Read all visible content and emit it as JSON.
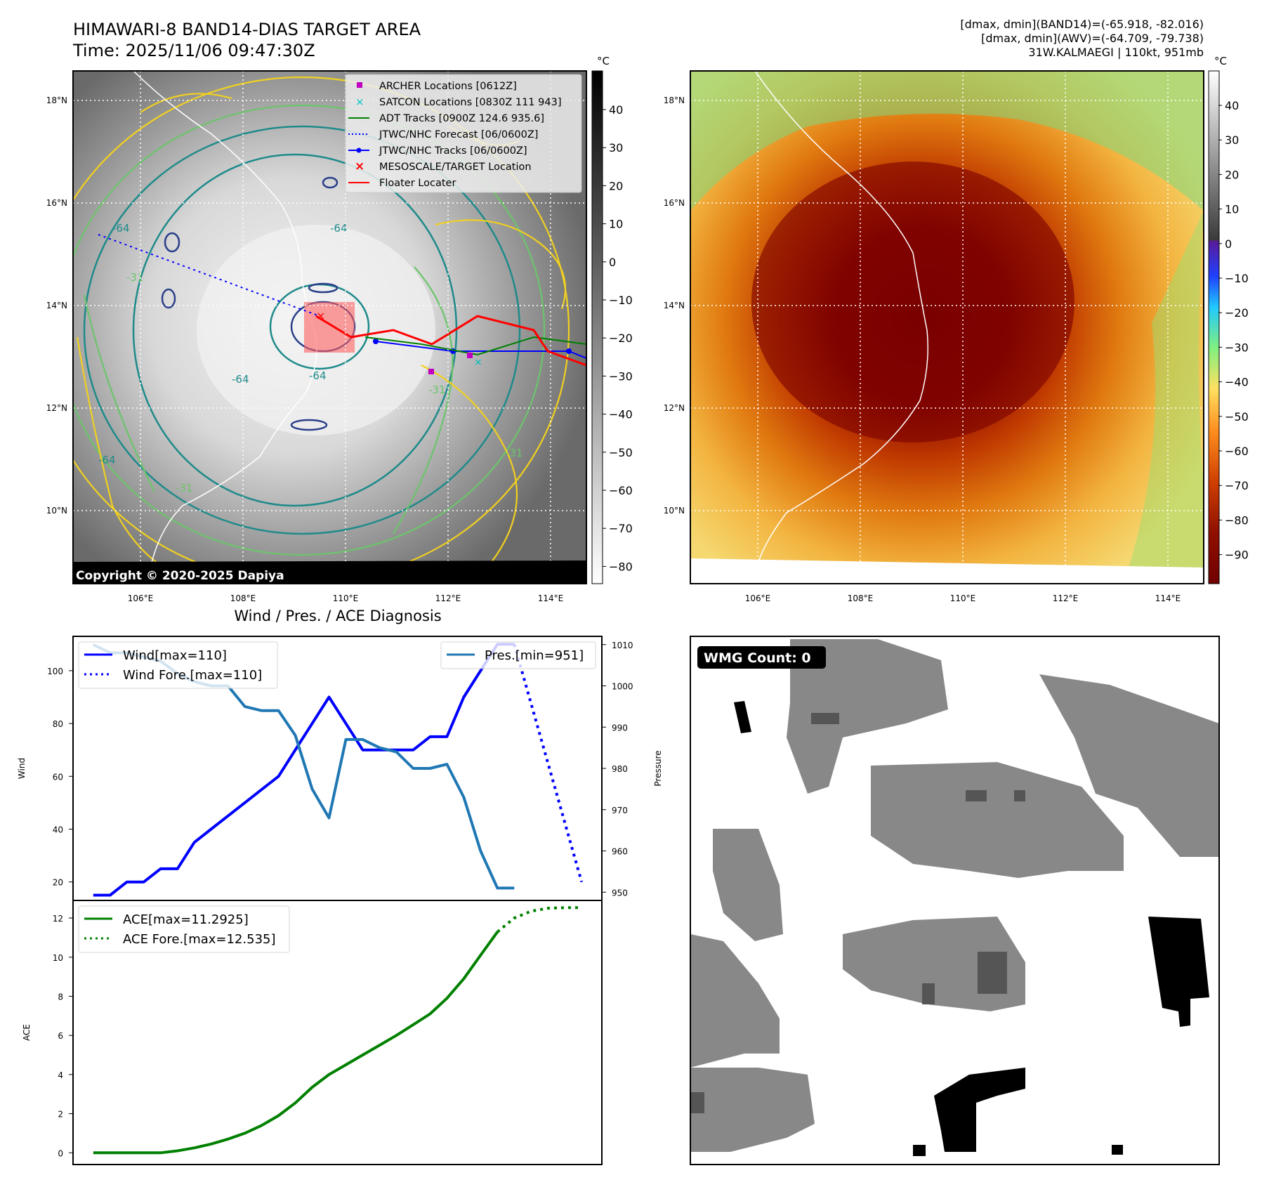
{
  "header": {
    "title_line1": "HIMAWARI-8 BAND14-DIAS TARGET AREA",
    "title_line2": "Time: 2025/11/06 09:47:30Z",
    "info_line1": "[dmax, dmin](BAND14)=(-65.918, -82.016)",
    "info_line2": "[dmax, dmin](AWV)=(-64.709, -79.738)",
    "info_line3": "31W.KALMAEGI | 110kt, 951mb"
  },
  "map": {
    "lon_labels": [
      "106°E",
      "108°E",
      "110°E",
      "112°E",
      "114°E"
    ],
    "lat_labels": [
      "18°N",
      "16°N",
      "14°N",
      "12°N",
      "10°N"
    ],
    "contour_labels": [
      "-64",
      "-64",
      "-64",
      "-64",
      "-64",
      "-31",
      "-31",
      "-31",
      "-31"
    ],
    "copyright": "Copyright © 2020-2025 Dapiya",
    "legend": [
      {
        "label": "ARCHER Locations [0612Z]",
        "color": "#c000c0",
        "marker": "square"
      },
      {
        "label": "SATCON Locations [0830Z 111 943]",
        "color": "#00bfbf",
        "marker": "x"
      },
      {
        "label": "ADT Tracks [0900Z 124.6 935.6]",
        "color": "#008000",
        "marker": "line"
      },
      {
        "label": "JTWC/NHC Forecast [06/0600Z]",
        "color": "#0000ff",
        "marker": "dotted"
      },
      {
        "label": "JTWC/NHC Tracks [06/0600Z]",
        "color": "#0000ff",
        "marker": "line-dot"
      },
      {
        "label": "MESOSCALE/TARGET Location",
        "color": "#ff0000",
        "marker": "x"
      },
      {
        "label": "Floater Locater",
        "color": "#ff0000",
        "marker": "line"
      }
    ]
  },
  "colorbar1": {
    "unit": "°C",
    "ticks": [
      "40",
      "30",
      "20",
      "10",
      "0",
      "−10",
      "−20",
      "−30",
      "−40",
      "−50",
      "−60",
      "−70",
      "−80"
    ]
  },
  "colorbar2": {
    "unit": "°C",
    "ticks": [
      "40",
      "30",
      "20",
      "10",
      "0",
      "−10",
      "−20",
      "−30",
      "−40",
      "−50",
      "−60",
      "−70",
      "−80",
      "−90"
    ]
  },
  "wmg": {
    "label": "WMG Count: 0"
  },
  "chart_data": [
    {
      "type": "line",
      "title": "Wind / Pres. / ACE Diagnosis",
      "ylabel": "Wind",
      "ylabel_right": "Pressure",
      "ylim": [
        13,
        113
      ],
      "ylim_right": [
        948,
        1012
      ],
      "yticks": [
        20,
        40,
        60,
        80,
        100
      ],
      "yticks_right": [
        950,
        960,
        970,
        980,
        990,
        1000,
        1010
      ],
      "series": [
        {
          "name": "Wind[max=110]",
          "axis": "left",
          "color": "#0000ff",
          "style": "solid",
          "values": [
            15,
            15,
            20,
            20,
            25,
            25,
            35,
            40,
            45,
            50,
            55,
            60,
            70,
            80,
            90,
            80,
            70,
            70,
            70,
            70,
            75,
            75,
            90,
            100,
            110,
            110
          ]
        },
        {
          "name": "Wind Fore.[max=110]",
          "axis": "left",
          "color": "#0000ff",
          "style": "dotted",
          "x": [
            25,
            29
          ],
          "values": [
            110,
            20
          ]
        },
        {
          "name": "Pres.[min=951]",
          "axis": "right",
          "color": "#1f77b4",
          "style": "solid",
          "values": [
            1010,
            1008,
            1008,
            1007,
            1006,
            1003,
            1001,
            1000,
            1000,
            995,
            994,
            994,
            988,
            975,
            968,
            987,
            987,
            985,
            984,
            980,
            980,
            981,
            973,
            960,
            951,
            951
          ]
        }
      ]
    },
    {
      "type": "line",
      "ylabel": "ACE",
      "ylim": [
        -0.6,
        12.9
      ],
      "yticks": [
        0,
        2,
        4,
        6,
        8,
        10,
        12
      ],
      "series": [
        {
          "name": "ACE[max=11.2925]",
          "color": "#008000",
          "style": "solid",
          "values": [
            0,
            0,
            0,
            0,
            0,
            0.1,
            0.25,
            0.45,
            0.7,
            1.0,
            1.4,
            1.9,
            2.55,
            3.35,
            4.0,
            4.5,
            5.0,
            5.5,
            6.0,
            6.55,
            7.1,
            7.9,
            8.9,
            10.1,
            11.2925
          ]
        },
        {
          "name": "ACE Fore.[max=12.535]",
          "color": "#008000",
          "style": "dotted",
          "x": [
            24,
            25,
            26,
            27,
            28,
            29
          ],
          "values": [
            11.2925,
            12.0,
            12.35,
            12.5,
            12.53,
            12.535
          ]
        }
      ]
    }
  ]
}
